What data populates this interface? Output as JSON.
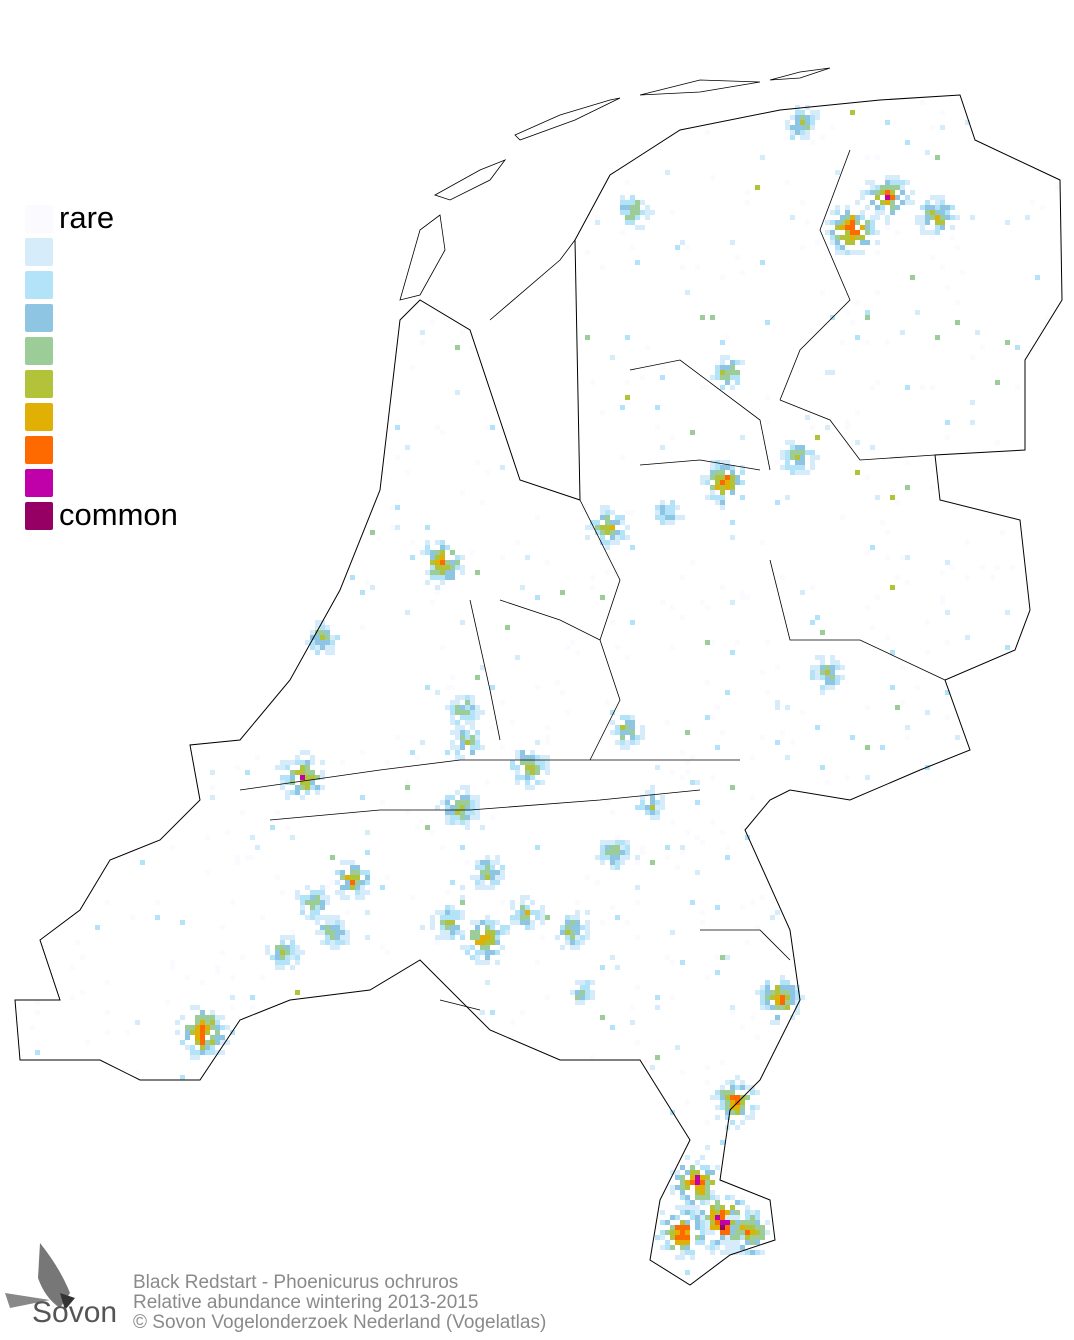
{
  "legend": {
    "top_label": "rare",
    "bottom_label": "common",
    "colors": [
      "#fbfbff",
      "#d6ecfa",
      "#b3e3f9",
      "#8dc5e2",
      "#9ccd98",
      "#b2c33a",
      "#e1b004",
      "#ff6a00",
      "#c000a8",
      "#960064"
    ]
  },
  "caption": {
    "line1": "Black Redstart - Phoenicurus ochruros",
    "line2": "Relative abundance wintering 2013-2015",
    "line3": "© Sovon Vogelonderzoek Nederland (Vogelatlas)"
  },
  "logo": {
    "text": "Sovon"
  },
  "map": {
    "border_color": "#000000",
    "land_color": "#ffffff"
  }
}
